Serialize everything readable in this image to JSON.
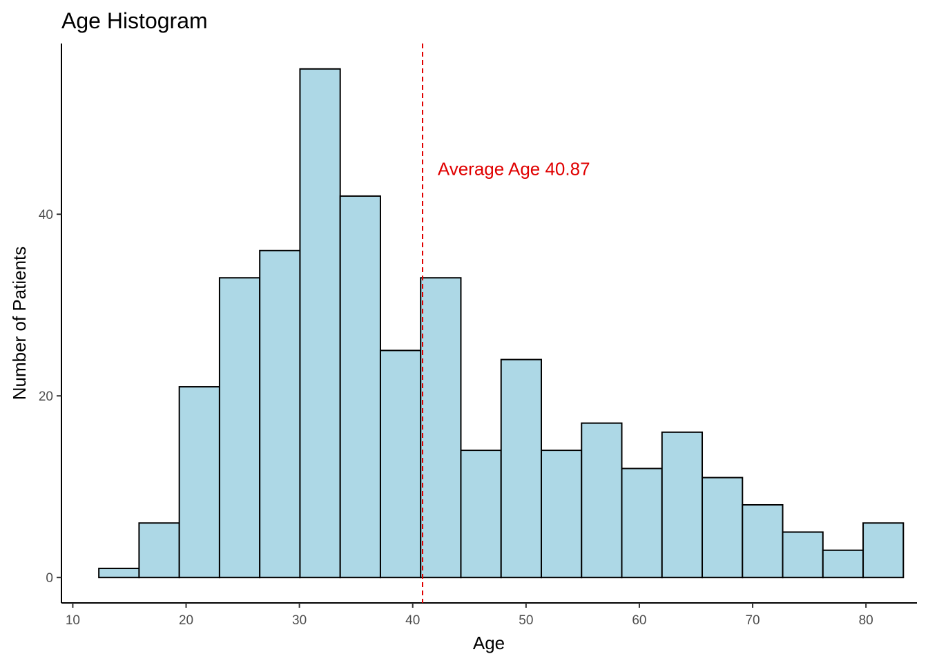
{
  "chart_data": {
    "type": "bar",
    "title": "Age Histogram",
    "xlabel": "Age",
    "ylabel": "Number of Patients",
    "bin_width": 3.55,
    "bins_start": [
      12.3,
      15.85,
      19.4,
      22.95,
      26.5,
      30.05,
      33.6,
      37.15,
      40.7,
      44.25,
      47.8,
      51.35,
      54.9,
      58.45,
      62.0,
      65.55,
      69.1,
      72.65,
      76.2,
      79.75
    ],
    "values": [
      1,
      6,
      21,
      33,
      36,
      56,
      42,
      25,
      33,
      14,
      24,
      14,
      17,
      12,
      16,
      11,
      8,
      5,
      3,
      6
    ],
    "xlim": [
      9,
      84.5
    ],
    "ylim": [
      -2.8,
      58.8
    ],
    "x_ticks": [
      10,
      20,
      30,
      40,
      50,
      60,
      70,
      80
    ],
    "x_tick_labels": [
      "10",
      "20",
      "30",
      "40",
      "50",
      "60",
      "70",
      "80"
    ],
    "y_ticks": [
      0,
      20,
      40
    ],
    "y_tick_labels": [
      "0",
      "20",
      "40"
    ],
    "bar_fill": "#add8e6",
    "bar_stroke": "#000000",
    "grid": false,
    "mean_line": {
      "value": 40.87,
      "color": "#e00000",
      "style": "dashed"
    },
    "annotation": {
      "text": "Average Age 40.87",
      "x": 42.2,
      "y": 44.3,
      "color": "#e00000"
    }
  }
}
